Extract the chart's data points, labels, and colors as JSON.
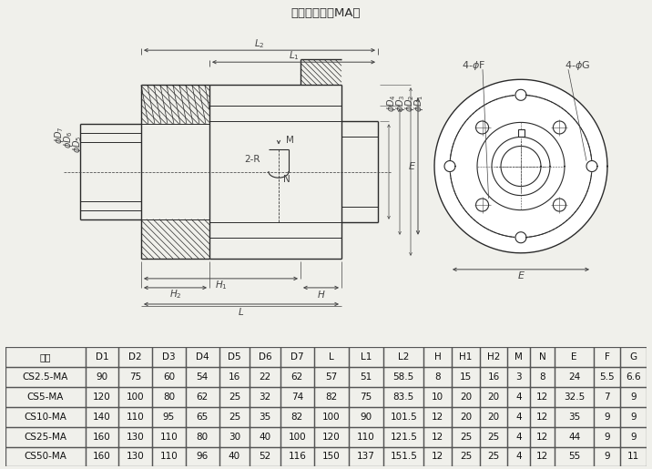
{
  "title": "电机联接座（MA）",
  "table_headers": [
    "型号",
    "D1",
    "D2",
    "D3",
    "D4",
    "D5",
    "D6",
    "D7",
    "L",
    "L1",
    "L2",
    "H",
    "H1",
    "H2",
    "M",
    "N",
    "E",
    "F",
    "G"
  ],
  "table_rows": [
    [
      "CS2.5-MA",
      "90",
      "75",
      "60",
      "54",
      "16",
      "22",
      "62",
      "57",
      "51",
      "58.5",
      "8",
      "15",
      "16",
      "3",
      "8",
      "24",
      "5.5",
      "6.6"
    ],
    [
      "CS5-MA",
      "120",
      "100",
      "80",
      "62",
      "25",
      "32",
      "74",
      "82",
      "75",
      "83.5",
      "10",
      "20",
      "20",
      "4",
      "12",
      "32.5",
      "7",
      "9"
    ],
    [
      "CS10-MA",
      "140",
      "110",
      "95",
      "65",
      "25",
      "35",
      "82",
      "100",
      "90",
      "101.5",
      "12",
      "20",
      "20",
      "4",
      "12",
      "35",
      "9",
      "9"
    ],
    [
      "CS25-MA",
      "160",
      "130",
      "110",
      "80",
      "30",
      "40",
      "100",
      "120",
      "110",
      "121.5",
      "12",
      "25",
      "25",
      "4",
      "12",
      "44",
      "9",
      "9"
    ],
    [
      "CS50-MA",
      "160",
      "130",
      "110",
      "96",
      "40",
      "52",
      "116",
      "150",
      "137",
      "151.5",
      "12",
      "25",
      "25",
      "4",
      "12",
      "55",
      "9",
      "11"
    ]
  ],
  "bg_color": "#f0f0eb",
  "line_color": "#2a2a2a",
  "dim_color": "#444444",
  "table_border": "#555555",
  "table_bg": "#ffffff"
}
